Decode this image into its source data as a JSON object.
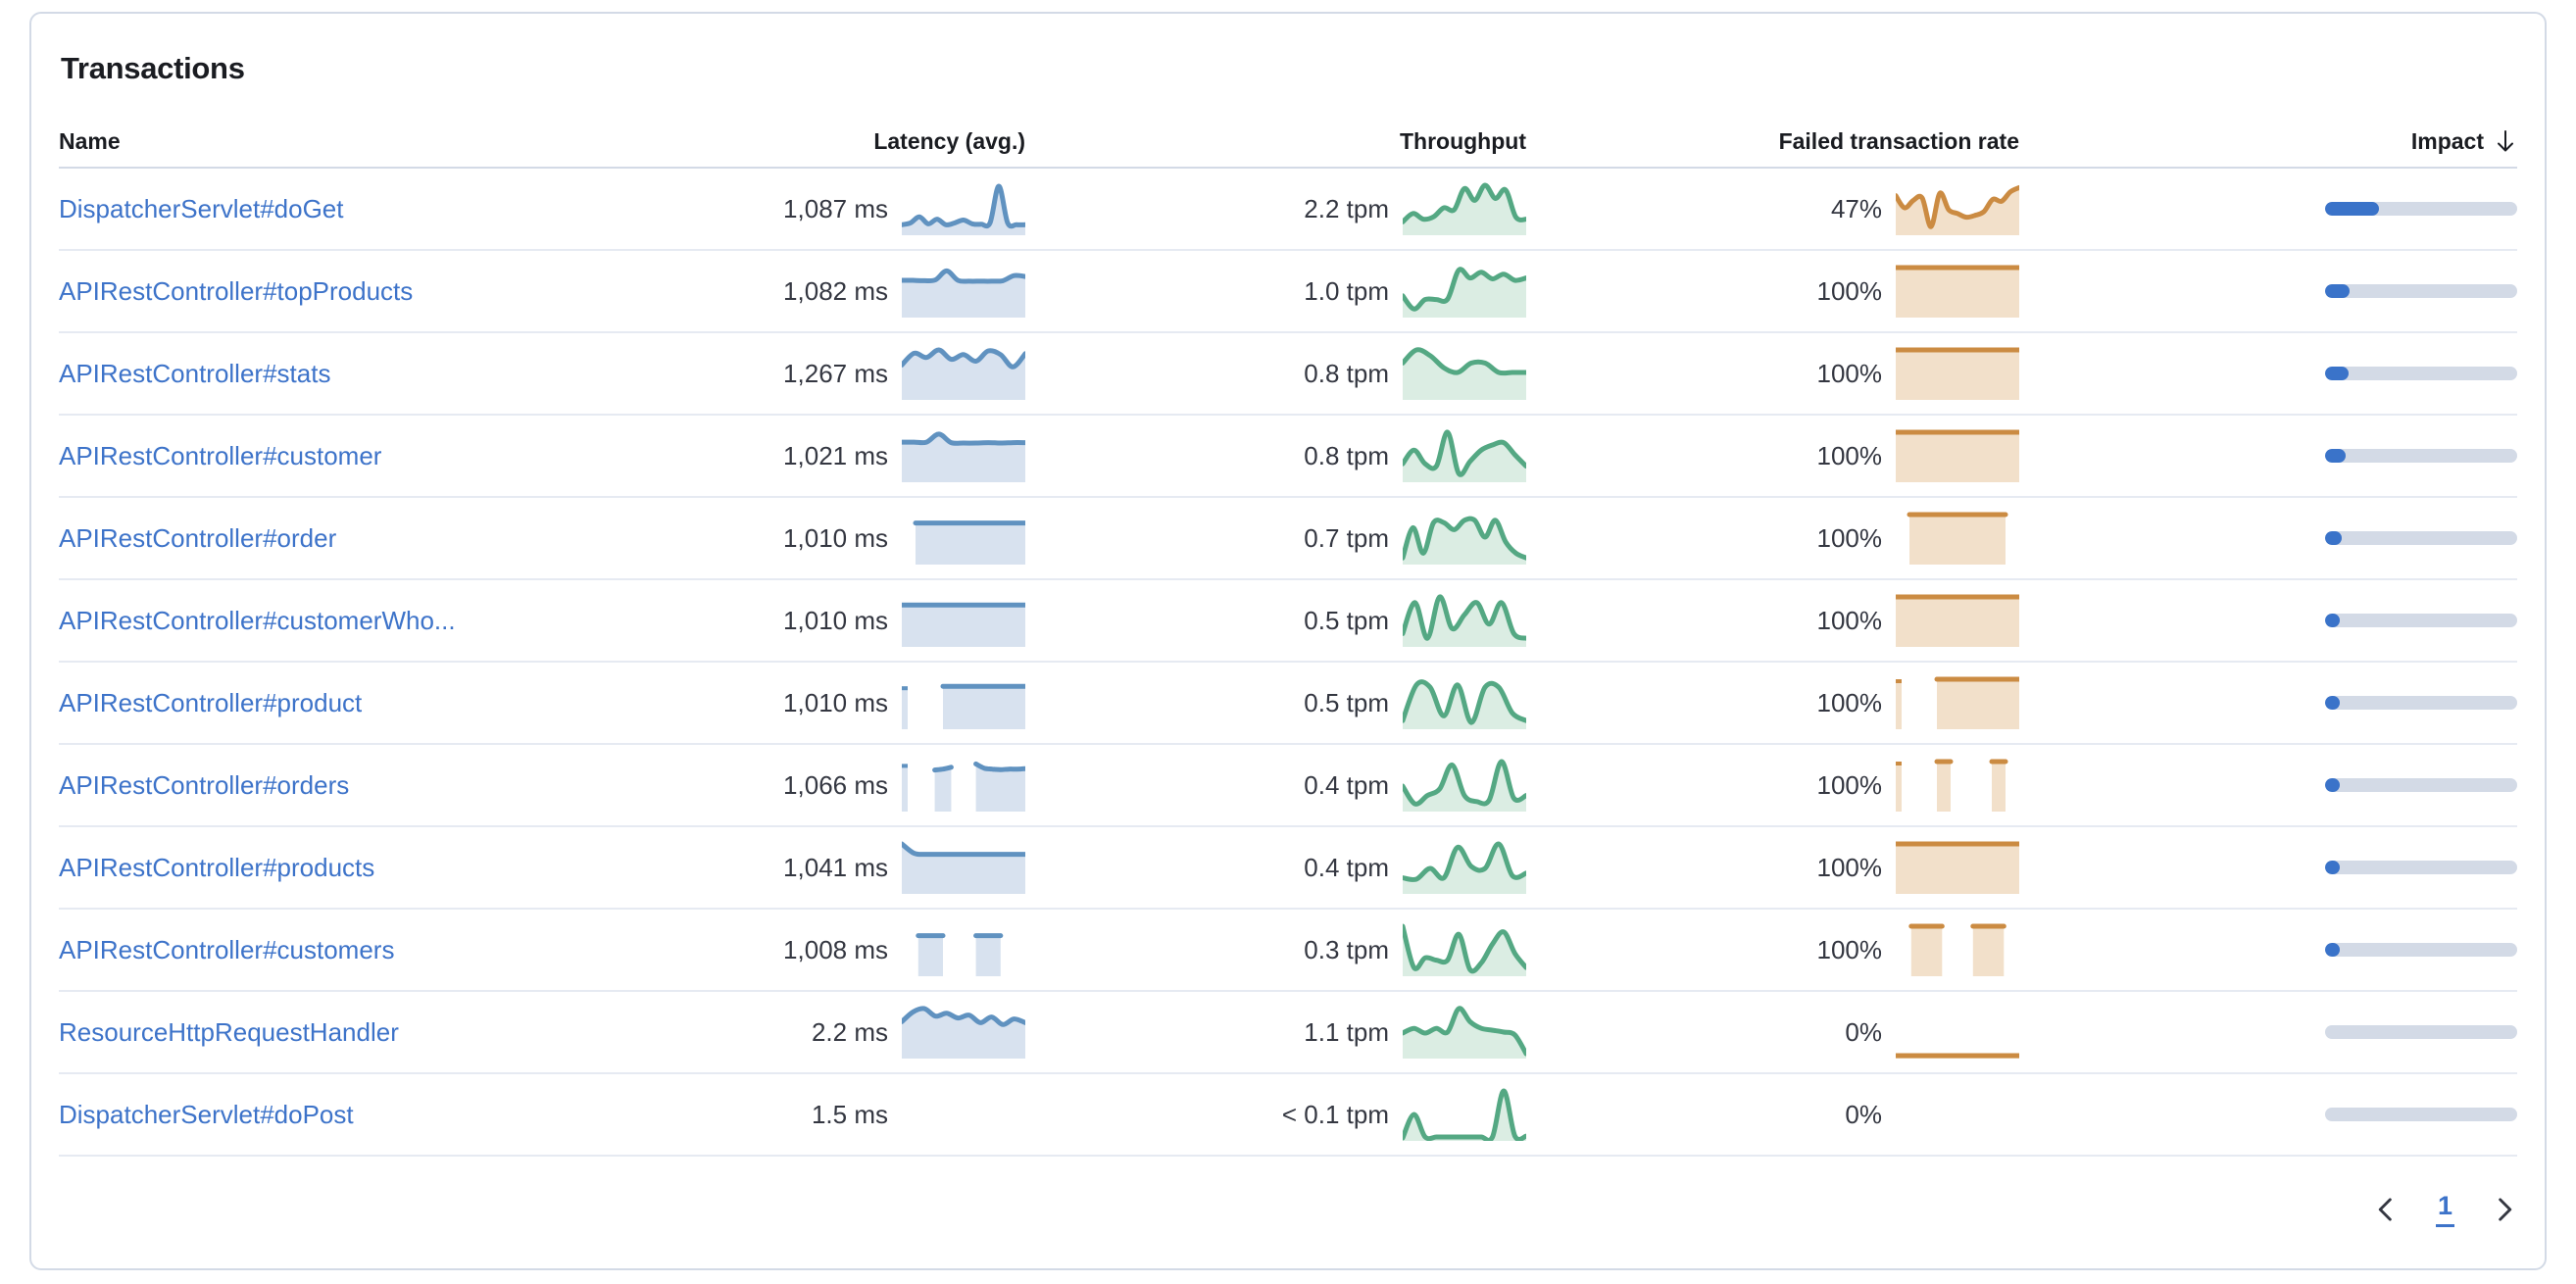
{
  "panel": {
    "title": "Transactions"
  },
  "table": {
    "columns": [
      {
        "label": "Name"
      },
      {
        "label": "Latency (avg.)"
      },
      {
        "label": "Throughput"
      },
      {
        "label": "Failed transaction rate"
      },
      {
        "label": "Impact",
        "sorted": "desc"
      }
    ],
    "rows": [
      {
        "name": "DispatcherServlet#doGet",
        "latency": "1,087 ms",
        "throughput": "2.2 tpm",
        "failed_rate": "47%",
        "impact_pct": 28,
        "spark_latency": [
          0.16,
          0.2,
          0.33,
          0.18,
          0.28,
          0.16,
          0.2,
          0.26,
          0.18,
          0.17,
          0.2,
          0.98,
          0.2,
          0.16,
          0.16
        ],
        "spark_throughput": [
          0.22,
          0.4,
          0.28,
          0.33,
          0.52,
          0.48,
          0.93,
          0.68,
          1.0,
          0.72,
          0.9,
          0.32,
          0.28
        ],
        "spark_failed": [
          0.78,
          0.52,
          0.68,
          0.73,
          0.12,
          0.83,
          0.48,
          0.4,
          0.32,
          0.36,
          0.44,
          0.7,
          0.66,
          0.86,
          0.95
        ]
      },
      {
        "name": "APIRestController#topProducts",
        "latency": "1,082 ms",
        "throughput": "1.0 tpm",
        "failed_rate": "100%",
        "impact_pct": 12.5,
        "spark_latency": [
          0.73,
          0.73,
          0.72,
          0.74,
          0.93,
          0.73,
          0.71,
          0.71,
          0.71,
          0.72,
          0.83,
          0.81
        ],
        "spark_throughput": [
          0.4,
          0.12,
          0.32,
          0.32,
          0.33,
          0.95,
          0.78,
          0.9,
          0.76,
          0.86,
          0.73,
          0.78
        ],
        "spark_failed": [
          1,
          1,
          1,
          1,
          1,
          1,
          1,
          1
        ]
      },
      {
        "name": "APIRestController#stats",
        "latency": "1,267 ms",
        "throughput": "0.8 tpm",
        "failed_rate": "100%",
        "impact_pct": 12,
        "spark_latency": [
          0.68,
          0.93,
          0.84,
          1.0,
          0.8,
          0.9,
          0.76,
          0.98,
          0.9,
          0.64,
          0.92
        ],
        "spark_throughput": [
          0.72,
          1.0,
          0.88,
          0.62,
          0.52,
          0.72,
          0.72,
          0.52,
          0.52,
          0.52
        ],
        "spark_failed": [
          1,
          1,
          1,
          1,
          1,
          1,
          1,
          1
        ]
      },
      {
        "name": "APIRestController#customer",
        "latency": "1,021 ms",
        "throughput": "0.8 tpm",
        "failed_rate": "100%",
        "impact_pct": 10.5,
        "spark_latency": [
          0.79,
          0.79,
          0.79,
          0.96,
          0.78,
          0.77,
          0.77,
          0.78,
          0.77,
          0.78,
          0.78
        ],
        "spark_throughput": [
          0.33,
          0.62,
          0.33,
          0.28,
          1.0,
          0.12,
          0.38,
          0.62,
          0.73,
          0.78,
          0.52,
          0.28
        ],
        "spark_failed": [
          1,
          1,
          1,
          1,
          1,
          1,
          1,
          1
        ]
      },
      {
        "name": "APIRestController#order",
        "latency": "1,010 ms",
        "throughput": "0.7 tpm",
        "failed_rate": "100%",
        "impact_pct": 8.5,
        "spark_latency": [
          null,
          0.82,
          0.82,
          0.82,
          0.82,
          0.82,
          0.82,
          0.82,
          0.82,
          0.82
        ],
        "spark_throughput": [
          0.08,
          0.72,
          0.18,
          0.83,
          0.83,
          0.68,
          0.88,
          0.88,
          0.52,
          0.88,
          0.42,
          0.18,
          0.08
        ],
        "spark_failed": [
          null,
          1,
          1,
          1,
          1,
          1,
          1,
          1,
          1,
          null
        ]
      },
      {
        "name": "APIRestController#customerWho...",
        "latency": "1,010 ms",
        "throughput": "0.5 tpm",
        "failed_rate": "100%",
        "impact_pct": 7,
        "spark_latency": [
          0.83,
          0.83,
          0.83,
          0.83,
          0.83,
          0.83,
          0.83,
          0.83,
          0.83,
          0.83,
          0.83
        ],
        "spark_throughput": [
          0.22,
          0.88,
          0.12,
          1.0,
          0.33,
          0.62,
          0.88,
          0.42,
          0.88,
          0.22,
          0.12
        ],
        "spark_failed": [
          1,
          1,
          1,
          1,
          1,
          1,
          1,
          1
        ]
      },
      {
        "name": "APIRestController#product",
        "latency": "1,010 ms",
        "throughput": "0.5 tpm",
        "failed_rate": "100%",
        "impact_pct": 6.5,
        "spark_latency": [
          0.85,
          null,
          null,
          0.85,
          0.85,
          0.85,
          0.85,
          0.85,
          0.85,
          0.85
        ],
        "spark_throughput": [
          0.12,
          0.88,
          0.83,
          0.22,
          0.88,
          0.08,
          0.83,
          0.83,
          0.28,
          0.12
        ],
        "spark_failed": [
          1,
          null,
          null,
          1,
          1,
          1,
          1,
          1,
          1,
          1
        ]
      },
      {
        "name": "APIRestController#orders",
        "latency": "1,066 ms",
        "throughput": "0.4 tpm",
        "failed_rate": "100%",
        "impact_pct": 6,
        "spark_latency": [
          0.95,
          null,
          null,
          null,
          0.82,
          0.84,
          0.88,
          null,
          null,
          0.95,
          0.86,
          0.84,
          0.83,
          0.84,
          0.84,
          0.85
        ],
        "spark_throughput": [
          0.48,
          0.1,
          0.28,
          0.42,
          0.93,
          0.28,
          0.15,
          0.18,
          1.0,
          0.22,
          0.28
        ],
        "spark_failed": [
          1,
          null,
          null,
          1,
          1,
          null,
          null,
          1,
          1,
          null
        ]
      },
      {
        "name": "APIRestController#products",
        "latency": "1,041 ms",
        "throughput": "0.4 tpm",
        "failed_rate": "100%",
        "impact_pct": 5.5,
        "spark_latency": [
          1.0,
          0.8,
          0.78,
          0.78,
          0.78,
          0.78,
          0.78,
          0.78,
          0.78,
          0.78,
          0.78
        ],
        "spark_throughput": [
          0.28,
          0.25,
          0.48,
          0.28,
          0.93,
          0.52,
          0.48,
          1.0,
          0.32,
          0.38
        ],
        "spark_failed": [
          1,
          1,
          1,
          1,
          1,
          1,
          1,
          1
        ]
      },
      {
        "name": "APIRestController#customers",
        "latency": "1,008 ms",
        "throughput": "0.3 tpm",
        "failed_rate": "100%",
        "impact_pct": 5,
        "spark_latency": [
          null,
          null,
          0.8,
          0.8,
          0.8,
          0.8,
          null,
          null,
          null,
          0.8,
          0.8,
          0.8,
          0.8,
          null,
          null,
          null
        ],
        "spark_throughput": [
          1.0,
          0.12,
          0.33,
          0.28,
          0.28,
          0.83,
          0.08,
          0.22,
          0.62,
          0.88,
          0.42,
          0.12
        ],
        "spark_failed": [
          null,
          1,
          1,
          1,
          null,
          1,
          1,
          1,
          null
        ]
      },
      {
        "name": "ResourceHttpRequestHandler",
        "latency": "2.2 ms",
        "throughput": "1.1 tpm",
        "failed_rate": "0%",
        "impact_pct": 0,
        "spark_latency": [
          0.72,
          0.93,
          1.0,
          0.84,
          0.9,
          0.8,
          0.86,
          0.7,
          0.82,
          0.66,
          0.78,
          0.7
        ],
        "spark_throughput": [
          0.48,
          0.58,
          0.48,
          0.58,
          0.5,
          1.0,
          0.72,
          0.58,
          0.54,
          0.5,
          0.44,
          0.04
        ],
        "spark_failed": [
          0,
          0,
          0,
          0,
          0,
          0,
          0,
          0
        ]
      },
      {
        "name": "DispatcherServlet#doPost",
        "latency": "1.5 ms",
        "throughput": "< 0.1 tpm",
        "failed_rate": "0%",
        "impact_pct": 0,
        "spark_latency": null,
        "spark_throughput": [
          0,
          0.5,
          0.02,
          0.02,
          0.02,
          0.02,
          0.02,
          0.02,
          0.02,
          1.0,
          0.04,
          0.04
        ],
        "spark_failed": null
      }
    ]
  },
  "pagination": {
    "current_page": "1"
  },
  "colors": {
    "link": "#3D73C9",
    "text": "#343741",
    "title": "#1a1c21",
    "latency_line": "#6092C0",
    "latency_fill": "#D8E2EF",
    "throughput_line": "#54A883",
    "throughput_fill": "#DBEDE3",
    "failed_line": "#CB8B42",
    "failed_fill": "#F2E0CA",
    "impact_fill": "#3A73C9",
    "impact_track": "#D3DAE6"
  }
}
